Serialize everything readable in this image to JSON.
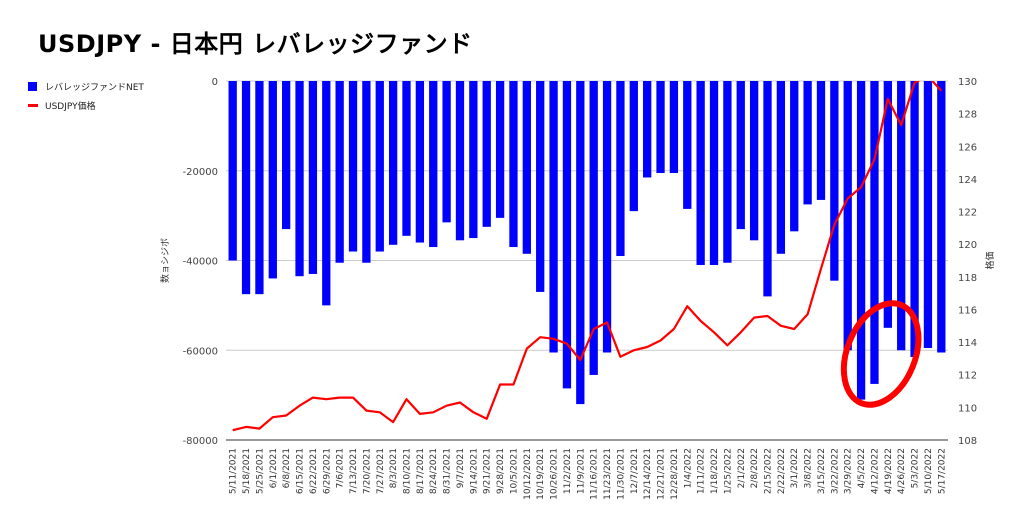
{
  "chart_data": {
    "type": "bar+line",
    "title": "USDJPY - 日本円 レバレッジファンド",
    "legend_position": "top-left",
    "grid": true,
    "ylabel_left": "数ョシジボ",
    "ylabel_right": "格価",
    "ylim_left": [
      -80000,
      0
    ],
    "ylim_right": [
      108,
      130
    ],
    "yticks_left": [
      "0",
      "-20000",
      "-40000",
      "-60000",
      "-80000"
    ],
    "yticks_right": [
      "130",
      "128",
      "126",
      "124",
      "122",
      "120",
      "118",
      "116",
      "114",
      "112",
      "110",
      "108"
    ],
    "categories": [
      "5/11/2021",
      "5/18/2021",
      "5/25/2021",
      "6/1/2021",
      "6/8/2021",
      "6/15/2021",
      "6/22/2021",
      "6/29/2021",
      "7/6/2021",
      "7/13/2021",
      "7/20/2021",
      "7/27/2021",
      "8/3/2021",
      "8/10/2021",
      "8/17/2021",
      "8/24/2021",
      "8/31/2021",
      "9/7/2021",
      "9/14/2021",
      "9/21/2021",
      "9/28/2021",
      "10/5/2021",
      "10/12/2021",
      "10/19/2021",
      "10/26/2021",
      "11/2/2021",
      "11/9/2021",
      "11/16/2021",
      "11/23/2021",
      "11/30/2021",
      "12/7/2021",
      "12/14/2021",
      "12/21/2021",
      "12/28/2021",
      "1/4/2022",
      "1/11/2022",
      "1/18/2022",
      "1/25/2022",
      "2/1/2022",
      "2/8/2022",
      "2/15/2022",
      "2/22/2022",
      "3/1/2022",
      "3/8/2022",
      "3/15/2022",
      "3/22/2022",
      "3/29/2022",
      "4/5/2022",
      "4/12/2022",
      "4/19/2022",
      "4/26/2022",
      "5/3/2022",
      "5/10/2022",
      "5/17/2022"
    ],
    "series": [
      {
        "name": "レバレッジファンドNET",
        "type": "bar",
        "axis": "left",
        "color": "#0000ff",
        "values": [
          -40000,
          -47500,
          -47500,
          -44000,
          -33000,
          -43500,
          -43000,
          -50000,
          -40500,
          -38000,
          -40500,
          -38000,
          -36500,
          -34500,
          -36000,
          -37000,
          -31500,
          -35500,
          -35000,
          -32500,
          -30500,
          -37000,
          -38500,
          -47000,
          -60500,
          -68500,
          -72000,
          -65500,
          -60500,
          -39000,
          -29000,
          -21500,
          -20500,
          -20500,
          -28500,
          -41000,
          -41000,
          -40500,
          -33000,
          -35500,
          -48000,
          -38500,
          -33500,
          -27500,
          -26500,
          -44500,
          -60000,
          -71000,
          -67500,
          -55000,
          -60000,
          -61500,
          -59500,
          -60500
        ]
      },
      {
        "name": "USDJPY価格",
        "type": "line",
        "axis": "right",
        "color": "#ff0000",
        "values": [
          108.6,
          108.8,
          108.7,
          109.4,
          109.5,
          110.1,
          110.6,
          110.5,
          110.6,
          110.6,
          109.8,
          109.7,
          109.1,
          110.5,
          109.6,
          109.7,
          110.1,
          110.3,
          109.7,
          109.3,
          111.4,
          111.4,
          113.6,
          114.3,
          114.2,
          113.9,
          112.9,
          114.8,
          115.2,
          113.1,
          113.5,
          113.7,
          114.1,
          114.8,
          116.2,
          115.3,
          114.6,
          113.8,
          114.6,
          115.5,
          115.6,
          115.0,
          114.8,
          115.7,
          118.5,
          121.2,
          122.8,
          123.5,
          125.2,
          128.9,
          127.3,
          129.9,
          130.3,
          129.4
        ]
      }
    ],
    "annotations": [
      {
        "type": "ellipse",
        "color": "#ff0000",
        "around": [
          "4/5/2022",
          "4/26/2022"
        ]
      }
    ]
  }
}
